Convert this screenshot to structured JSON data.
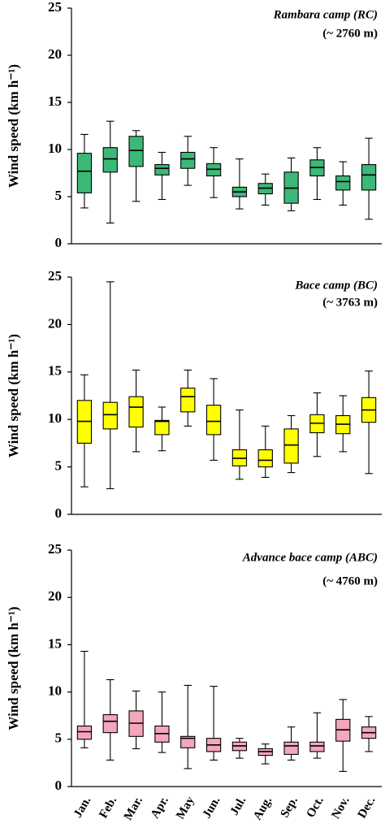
{
  "chart_data": [
    {
      "type": "box",
      "title": "Rambara camp (RC)",
      "subtitle": "(~ 2760 m)",
      "ylabel": "Wind speed (km h⁻¹)",
      "ylim": [
        0,
        25
      ],
      "yticks": [
        0,
        5,
        10,
        15,
        20,
        25
      ],
      "color": "#3cb878",
      "low": [
        3.8,
        2.2,
        4.5,
        4.7,
        6.2,
        4.9,
        3.7,
        4.1,
        3.5,
        4.7,
        4.1,
        2.6
      ],
      "q1": [
        5.4,
        7.6,
        8.2,
        7.3,
        8.0,
        7.2,
        5.0,
        5.3,
        4.3,
        7.2,
        5.7,
        5.7
      ],
      "median": [
        7.7,
        9.0,
        9.9,
        8.0,
        9.0,
        7.9,
        5.5,
        5.9,
        5.9,
        8.1,
        6.6,
        7.3
      ],
      "q3": [
        9.6,
        10.2,
        11.4,
        8.4,
        9.7,
        8.5,
        6.0,
        6.4,
        7.6,
        8.9,
        7.2,
        8.4
      ],
      "high": [
        11.6,
        13.0,
        12.0,
        9.7,
        11.4,
        10.2,
        9.0,
        7.4,
        9.1,
        10.2,
        8.7,
        11.2
      ]
    },
    {
      "type": "box",
      "title": "Bace camp (BC)",
      "subtitle": "(~ 3763 m)",
      "ylabel": "Wind speed (km h⁻¹)",
      "ylim": [
        0,
        25
      ],
      "yticks": [
        0,
        5,
        10,
        15,
        20,
        25
      ],
      "color": "#ffff00",
      "low": [
        2.9,
        2.7,
        6.6,
        6.7,
        9.3,
        5.7,
        3.7,
        3.9,
        4.4,
        6.1,
        6.6,
        4.3
      ],
      "q1": [
        7.5,
        9.0,
        9.2,
        8.4,
        10.8,
        8.4,
        5.1,
        5.0,
        5.4,
        8.6,
        8.5,
        9.7
      ],
      "median": [
        9.8,
        10.5,
        11.3,
        9.8,
        12.4,
        9.8,
        5.9,
        5.7,
        7.3,
        9.6,
        9.5,
        11.0
      ],
      "q3": [
        12.0,
        11.8,
        12.4,
        9.9,
        13.3,
        11.5,
        6.8,
        6.8,
        9.0,
        10.5,
        10.4,
        12.3
      ],
      "high": [
        14.7,
        24.5,
        15.2,
        11.3,
        15.2,
        14.3,
        11.0,
        9.3,
        10.4,
        12.8,
        12.5,
        15.1
      ]
    },
    {
      "type": "box",
      "title": "Advance bace camp (ABC)",
      "subtitle": "(~ 4760 m)",
      "ylabel": "Wind speed (km h⁻¹)",
      "ylim": [
        0,
        25
      ],
      "yticks": [
        0,
        5,
        10,
        15,
        20,
        25
      ],
      "color": "#f4a6bb",
      "categories": [
        "Jan.",
        "Feb.",
        "Mar.",
        "Apr.",
        "May",
        "Jun.",
        "Jul.",
        "Aug.",
        "Sep.",
        "Oct.",
        "Nov.",
        "Dec."
      ],
      "low": [
        4.1,
        2.8,
        4.0,
        3.6,
        1.9,
        2.8,
        3.0,
        2.4,
        2.8,
        3.0,
        1.6,
        3.7
      ],
      "q1": [
        5.0,
        5.7,
        5.3,
        4.7,
        4.1,
        3.7,
        3.8,
        3.3,
        3.4,
        3.7,
        4.8,
        5.1
      ],
      "median": [
        5.8,
        6.9,
        6.7,
        5.6,
        5.1,
        4.4,
        4.3,
        3.7,
        4.3,
        4.3,
        6.0,
        5.7
      ],
      "q3": [
        6.4,
        7.6,
        8.0,
        6.4,
        5.3,
        5.1,
        4.7,
        4.0,
        4.7,
        4.7,
        7.1,
        6.3
      ],
      "high": [
        14.3,
        11.3,
        10.1,
        10.0,
        10.7,
        10.6,
        5.1,
        4.5,
        6.3,
        7.8,
        9.2,
        7.4
      ]
    }
  ]
}
